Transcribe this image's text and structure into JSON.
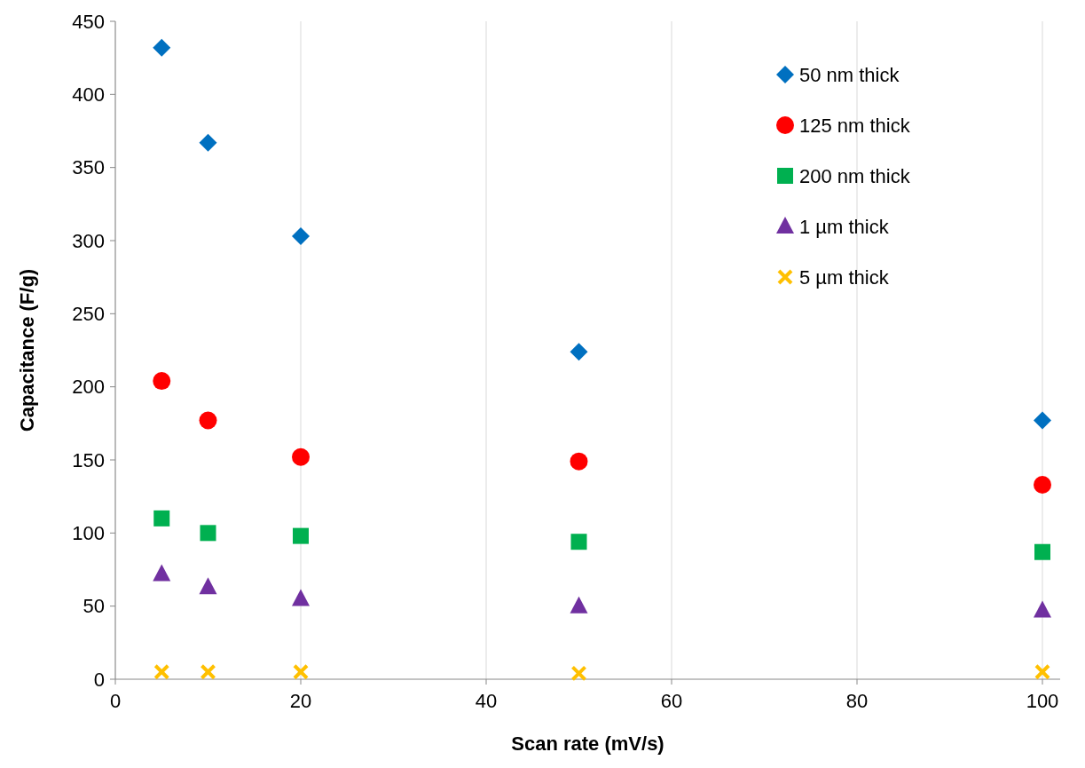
{
  "chart_data": {
    "type": "scatter",
    "xlabel": "Scan rate (mV/s)",
    "ylabel": "Capacitance (F/g)",
    "x": [
      5,
      10,
      20,
      50,
      100
    ],
    "series": [
      {
        "name": "50 nm thick",
        "color": "#0070c0",
        "marker": "diamond",
        "values": [
          432,
          367,
          303,
          224,
          177
        ]
      },
      {
        "name": "125 nm thick",
        "color": "#ff0000",
        "marker": "circle",
        "values": [
          204,
          177,
          152,
          149,
          133
        ]
      },
      {
        "name": "200 nm thick",
        "color": "#00b050",
        "marker": "square",
        "values": [
          110,
          100,
          98,
          94,
          87
        ]
      },
      {
        "name": "1 µm thick",
        "color": "#7030a0",
        "marker": "triangle",
        "values": [
          72,
          63,
          55,
          50,
          47
        ]
      },
      {
        "name": "5 µm thick",
        "color": "#ffc000",
        "marker": "cross",
        "values": [
          5,
          5,
          5,
          4,
          5
        ]
      }
    ],
    "xlim": [
      0,
      100
    ],
    "xticks": [
      0,
      20,
      40,
      60,
      80,
      100
    ],
    "ylim": [
      0,
      450
    ],
    "yticks": [
      0,
      50,
      100,
      150,
      200,
      250,
      300,
      350,
      400,
      450
    ],
    "grid": "x",
    "legend": "top right"
  }
}
